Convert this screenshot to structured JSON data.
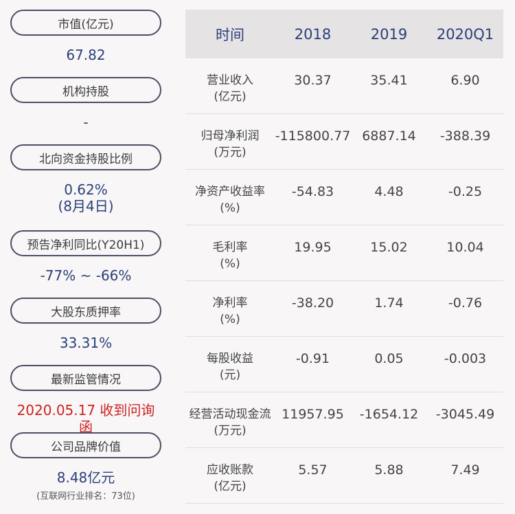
{
  "left": [
    {
      "pill": "市值(亿元)",
      "value": "67.82"
    },
    {
      "pill": "机构持股",
      "value": "-"
    },
    {
      "pill": "北向资金持股比例",
      "value": "0.62%",
      "value2": "(8月4日)"
    },
    {
      "pill": "预告净利同比(Y20H1)",
      "value": "-77% ~ -66%"
    },
    {
      "pill": "大股东质押率",
      "value": "33.31%"
    },
    {
      "pill": "最新监管情况",
      "value": "2020.05.17 收到问询函"
    },
    {
      "pill": "公司品牌价值",
      "value": "8.48亿元",
      "note": "(互联网行业排名：73位)"
    }
  ],
  "colors": {
    "value_text": "#2a3f7a",
    "alert_text": "#cc2222",
    "pill_border": "#4d4d66",
    "header_bg": "#e6e3e4"
  },
  "table": {
    "headers": [
      "时间",
      "2018",
      "2019",
      "2020Q1"
    ],
    "rows": [
      {
        "label1": "营业收入",
        "label2": "(亿元)",
        "v": [
          "30.37",
          "35.41",
          "6.90"
        ]
      },
      {
        "label1": "归母净利润",
        "label2": "(万元)",
        "v": [
          "-115800.77",
          "6887.14",
          "-388.39"
        ]
      },
      {
        "label1": "净资产收益率",
        "label2": "(%)",
        "v": [
          "-54.83",
          "4.48",
          "-0.25"
        ]
      },
      {
        "label1": "毛利率",
        "label2": "(%)",
        "v": [
          "19.95",
          "15.02",
          "10.04"
        ]
      },
      {
        "label1": "净利率",
        "label2": "(%)",
        "v": [
          "-38.20",
          "1.74",
          "-0.76"
        ]
      },
      {
        "label1": "每股收益",
        "label2": "(元)",
        "v": [
          "-0.91",
          "0.05",
          "-0.003"
        ]
      },
      {
        "label1": "经营活动现金流",
        "label2": "(万元)",
        "v": [
          "11957.95",
          "-1654.12",
          "-3045.49"
        ]
      },
      {
        "label1": "应收账款",
        "label2": "(亿元)",
        "v": [
          "5.57",
          "5.88",
          "7.49"
        ]
      }
    ]
  }
}
